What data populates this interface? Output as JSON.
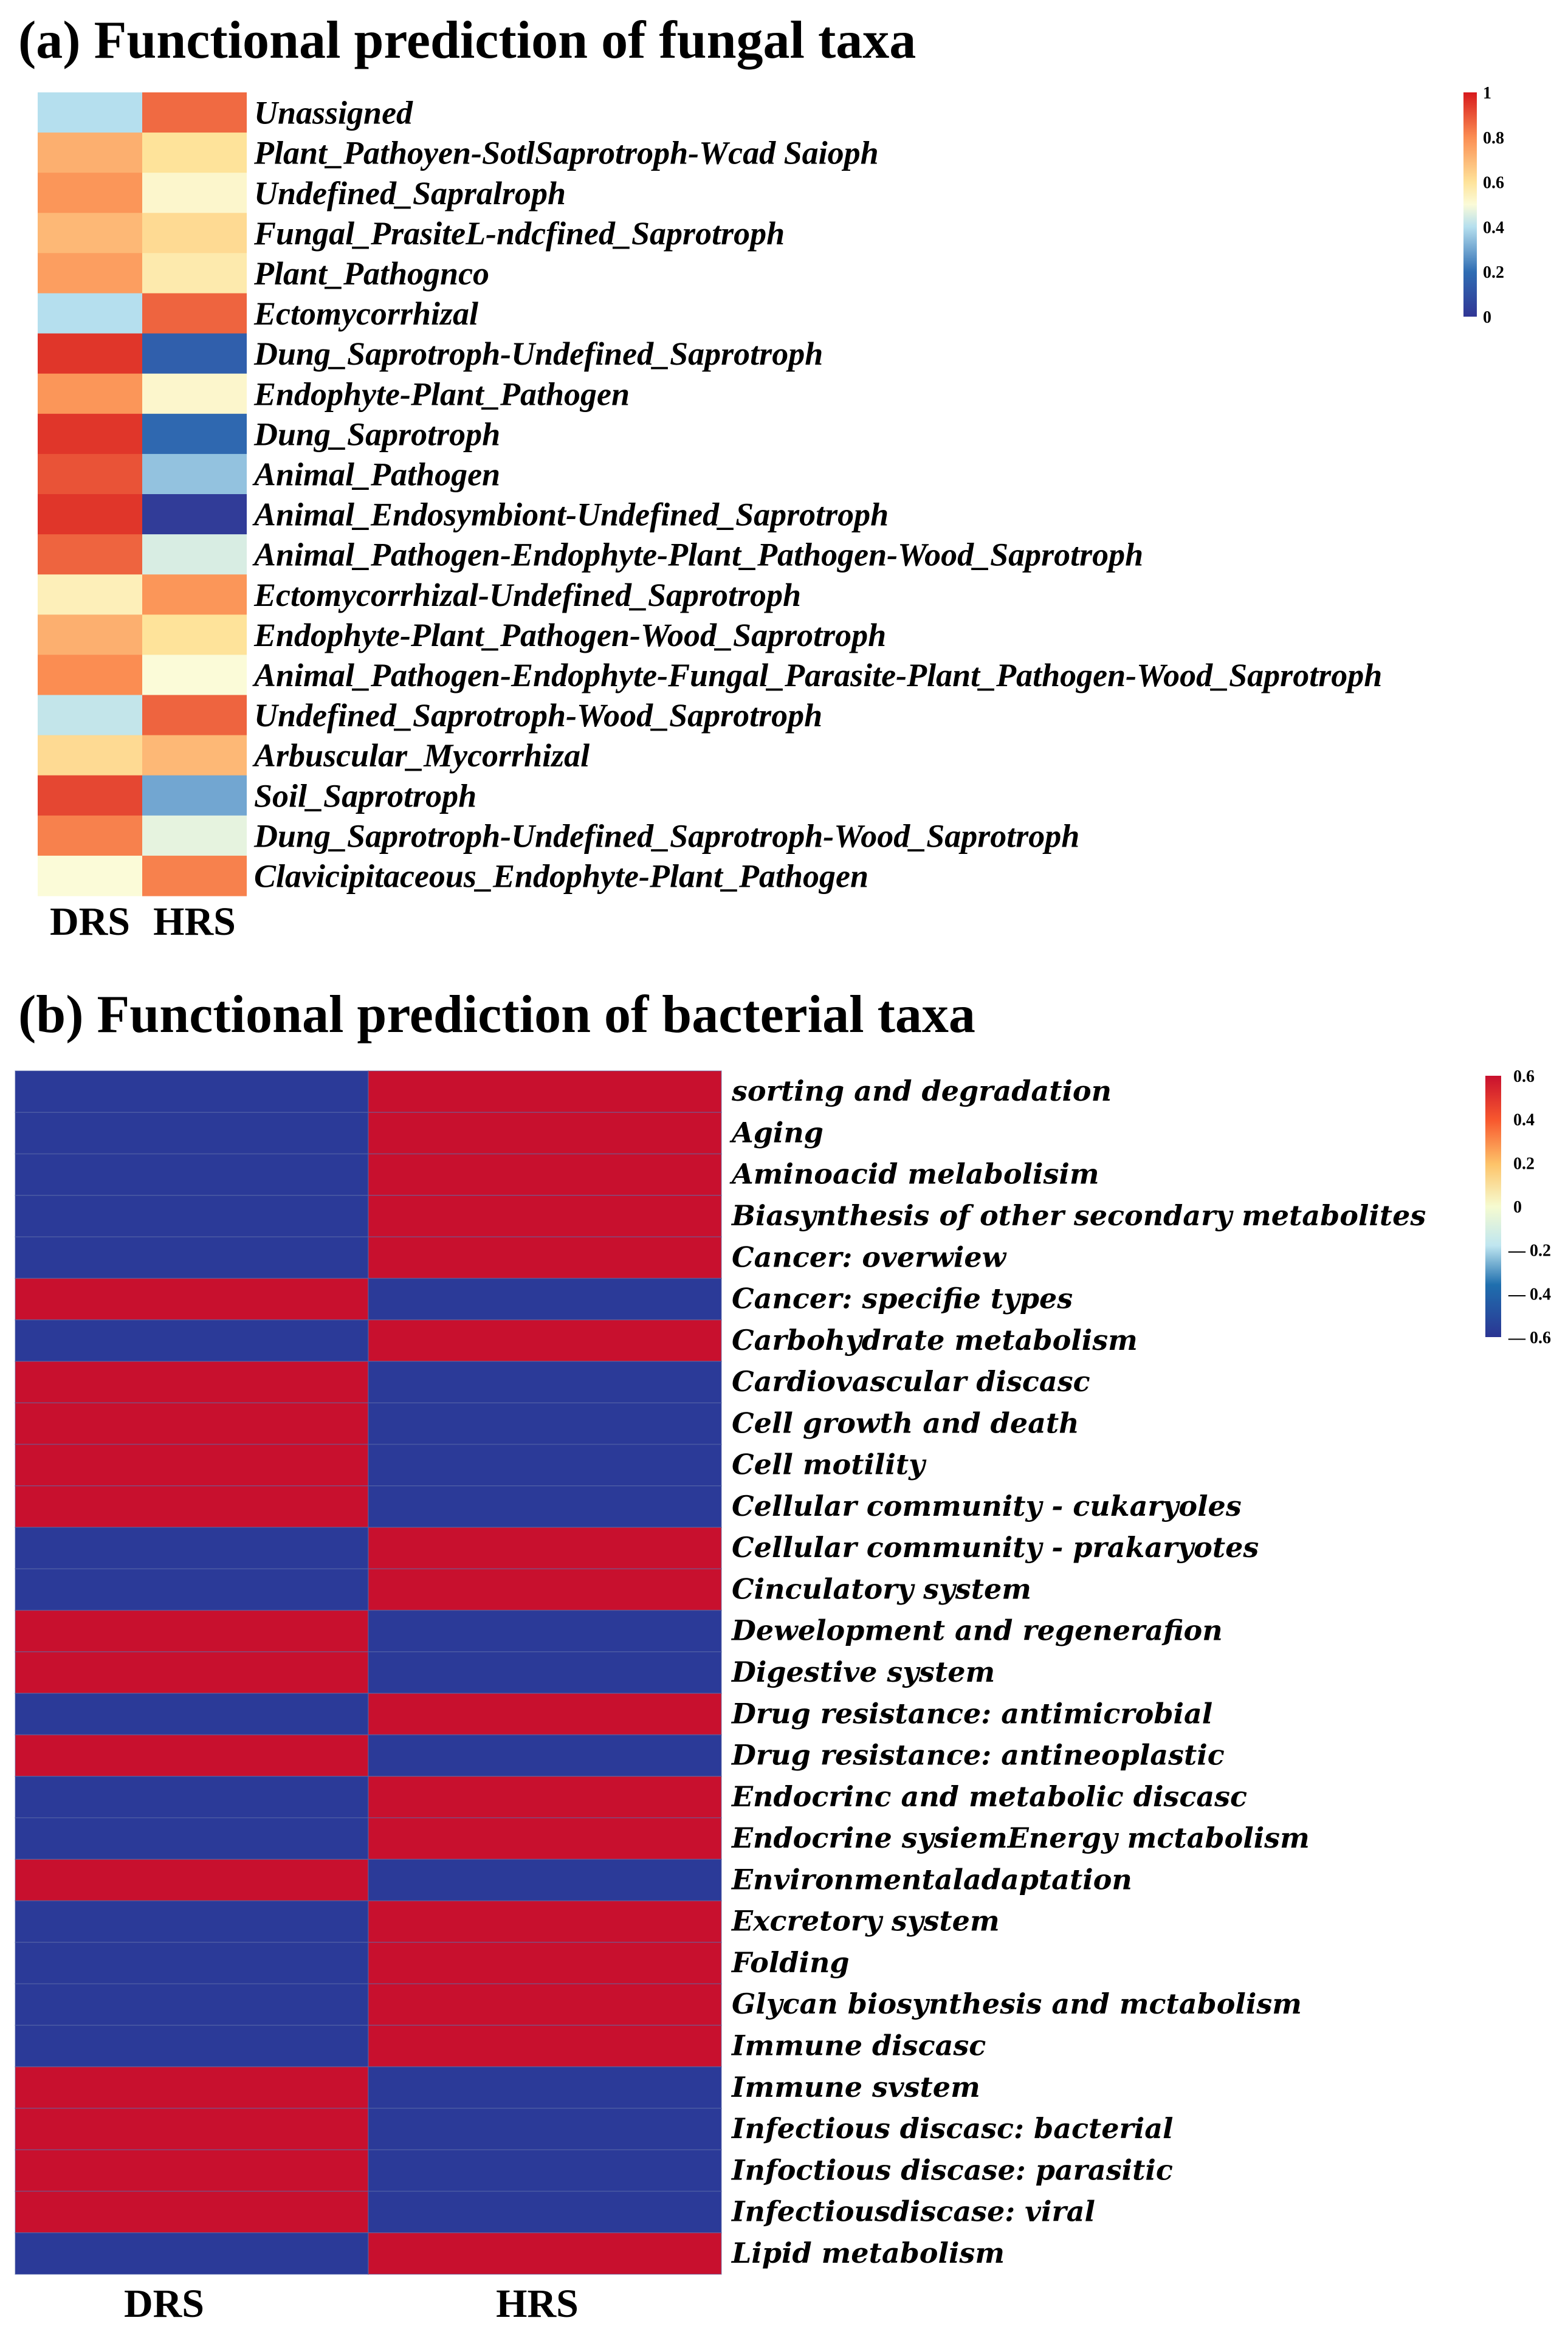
{
  "chart_data": [
    {
      "type": "heatmap",
      "title": "(a) Functional prediction of fungal taxa",
      "columns": [
        "DRS",
        "HRS"
      ],
      "rows": [
        "Unassigned",
        "Plant_Pathoyen-SotlSaprotroph-Wcad Saioph",
        "Undefined_Sapralroph",
        "Fungal_PrasiteL-ndcfined_Saprotroph",
        "Plant_Pathognco",
        "Ectomycorrhizal",
        "Dung_Saprotroph-Undefined_Saprotroph",
        "Endophyte-Plant_Pathogen",
        "Dung_Saprotroph",
        "Animal_Pathogen",
        "Animal_Endosymbiont-Undefined_Saprotroph",
        "Animal_Pathogen-Endophyte-Plant_Pathogen-Wood_Saprotroph",
        "Ectomycorrhizal-Undefined_Saprotroph",
        "Endophyte-Plant_Pathogen-Wood_Saprotroph",
        "Animal_Pathogen-Endophyte-Fungal_Parasite-Plant_Pathogen-Wood_Saprotroph",
        "Undefined_Saprotroph-Wood_Saprotroph",
        "Arbuscular_Mycorrhizal",
        "Soil_Saprotroph",
        "Dung_Saprotroph-Undefined_Saprotroph-Wood_Saprotroph",
        "Clavicipitaceous_Endophyte-Plant_Pathogen"
      ],
      "values": [
        [
          0.4,
          0.86
        ],
        [
          0.72,
          0.6
        ],
        [
          0.78,
          0.52
        ],
        [
          0.7,
          0.62
        ],
        [
          0.76,
          0.57
        ],
        [
          0.4,
          0.87
        ],
        [
          0.95,
          0.15
        ],
        [
          0.78,
          0.52
        ],
        [
          0.95,
          0.18
        ],
        [
          0.9,
          0.35
        ],
        [
          0.95,
          0.02
        ],
        [
          0.87,
          0.45
        ],
        [
          0.55,
          0.78
        ],
        [
          0.72,
          0.6
        ],
        [
          0.8,
          0.5
        ],
        [
          0.42,
          0.87
        ],
        [
          0.62,
          0.7
        ],
        [
          0.92,
          0.3
        ],
        [
          0.82,
          0.47
        ],
        [
          0.5,
          0.82
        ]
      ],
      "colorbar": {
        "range": [
          0,
          1
        ],
        "ticks": [
          "1",
          "0.8",
          "0.6",
          "0.4",
          "0.2",
          "0"
        ],
        "tick_values": [
          1,
          0.8,
          0.6,
          0.4,
          0.2,
          0
        ]
      },
      "colorscale": [
        [
          0,
          "#313695"
        ],
        [
          0.2,
          "#2f6db3"
        ],
        [
          0.4,
          "#b5dfee"
        ],
        [
          0.5,
          "#fbfbd8"
        ],
        [
          0.6,
          "#fee39a"
        ],
        [
          0.8,
          "#fb8d52"
        ],
        [
          1,
          "#d7191c"
        ]
      ]
    },
    {
      "type": "heatmap",
      "title": "(b) Functional prediction of bacterial taxa",
      "columns": [
        "DRS",
        "HRS"
      ],
      "rows": [
        "sorting and degradation",
        "Aging",
        "Aminoacid melabolisim",
        "Biasynthesis of other secondary metabolites",
        "Cancer: overwiew",
        "Cancer: specifie types",
        "Carbohydrate metabolism",
        "Cardiovascular discasc",
        "Cell growth and death",
        "Cell motility",
        "Cellular community - cukaryoles",
        "Cellular community - prakaryotes",
        "Cinculatory system",
        "Dewelopment and regenerafion",
        "Digestive system",
        "Drug resistance: antimicrobial",
        "Drug resistance: antineoplastic",
        "Endocrinc and metabolic discasc",
        "Endocrine sysiemEnergy mctabolism",
        "Environmentaladaptation",
        "Excretory system",
        "Folding",
        "Glycan biosynthesis and mctabolism",
        "Immune discasc",
        "Immune svstem",
        "Infectious discasc: bacterial",
        "Infoctious discase: parasitic",
        "Infectiousdiscase: viral",
        "Lipid metabolism"
      ],
      "values": [
        [
          -0.6,
          0.6
        ],
        [
          -0.6,
          0.6
        ],
        [
          -0.6,
          0.6
        ],
        [
          -0.6,
          0.6
        ],
        [
          -0.6,
          0.6
        ],
        [
          0.6,
          -0.6
        ],
        [
          -0.6,
          0.6
        ],
        [
          0.6,
          -0.6
        ],
        [
          0.6,
          -0.6
        ],
        [
          0.6,
          -0.6
        ],
        [
          0.6,
          -0.6
        ],
        [
          -0.6,
          0.6
        ],
        [
          -0.6,
          0.6
        ],
        [
          0.6,
          -0.6
        ],
        [
          0.6,
          -0.6
        ],
        [
          -0.6,
          0.6
        ],
        [
          0.6,
          -0.6
        ],
        [
          -0.6,
          0.6
        ],
        [
          -0.6,
          0.6
        ],
        [
          0.6,
          -0.6
        ],
        [
          -0.6,
          0.6
        ],
        [
          -0.6,
          0.6
        ],
        [
          -0.6,
          0.6
        ],
        [
          -0.6,
          0.6
        ],
        [
          0.6,
          -0.6
        ],
        [
          0.6,
          -0.6
        ],
        [
          0.6,
          -0.6
        ],
        [
          0.6,
          -0.6
        ],
        [
          -0.6,
          0.6
        ]
      ],
      "colorbar": {
        "range": [
          -0.6,
          0.6
        ],
        "ticks": [
          "0.6",
          "0.4",
          "0.2",
          "0",
          "— 0.2",
          "— 0.4",
          "— 0.6"
        ],
        "tick_values": [
          0.6,
          0.4,
          0.2,
          0,
          -0.2,
          -0.4,
          -0.6
        ]
      },
      "colorscale": [
        [
          0,
          "#2b3593"
        ],
        [
          0.2,
          "#1f6fae"
        ],
        [
          0.35,
          "#bfe6f0"
        ],
        [
          0.5,
          "#f6fbd0"
        ],
        [
          0.66,
          "#fdc46a"
        ],
        [
          0.83,
          "#f8582e"
        ],
        [
          1,
          "#c8102e"
        ]
      ],
      "cell_colors": {
        "positive": "#c8102e",
        "negative": "#2b3a98"
      }
    }
  ]
}
